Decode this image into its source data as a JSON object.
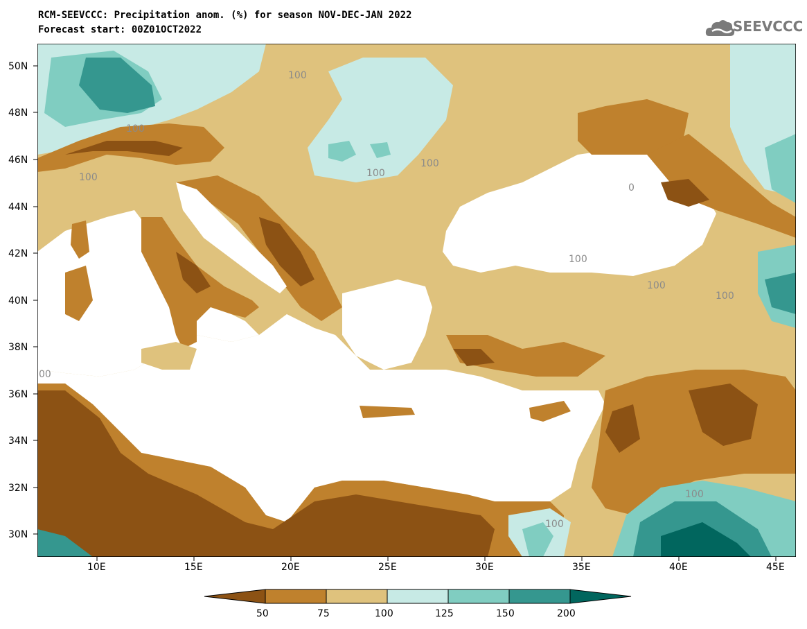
{
  "title": {
    "line1": "RCM-SEEVCCC: Precipitation anom. (%) for season NOV-DEC-JAN 2022",
    "line2": "Forecast start: 00Z01OCT2022"
  },
  "logo": {
    "text": "SEEVCCC",
    "icon": "cloud-icon",
    "color": "#7a7a7a"
  },
  "axes": {
    "lat_ticks": [
      "50N",
      "48N",
      "46N",
      "44N",
      "42N",
      "40N",
      "38N",
      "36N",
      "34N",
      "32N",
      "30N"
    ],
    "lon_ticks": [
      "10E",
      "15E",
      "20E",
      "25E",
      "30E",
      "35E",
      "40E",
      "45E"
    ]
  },
  "contour_labels": [
    "100",
    "100",
    "100",
    "100",
    "100",
    "100",
    "100",
    "100",
    "100",
    "100",
    "100",
    "100",
    "00",
    "0"
  ],
  "colorbar": {
    "ticks": [
      "50",
      "75",
      "100",
      "125",
      "150",
      "200"
    ],
    "colors": [
      "#8c5214",
      "#bf812d",
      "#dfc27d",
      "#c7eae5",
      "#80cdc1",
      "#35978f",
      "#01665e"
    ]
  },
  "palette": {
    "sea": "#ffffff",
    "very_dry": "#8c5214",
    "dry": "#bf812d",
    "slightly_dry": "#dfc27d",
    "slightly_wet": "#c7eae5",
    "wet": "#80cdc1",
    "very_wet": "#35978f",
    "extreme_wet": "#01665e"
  }
}
